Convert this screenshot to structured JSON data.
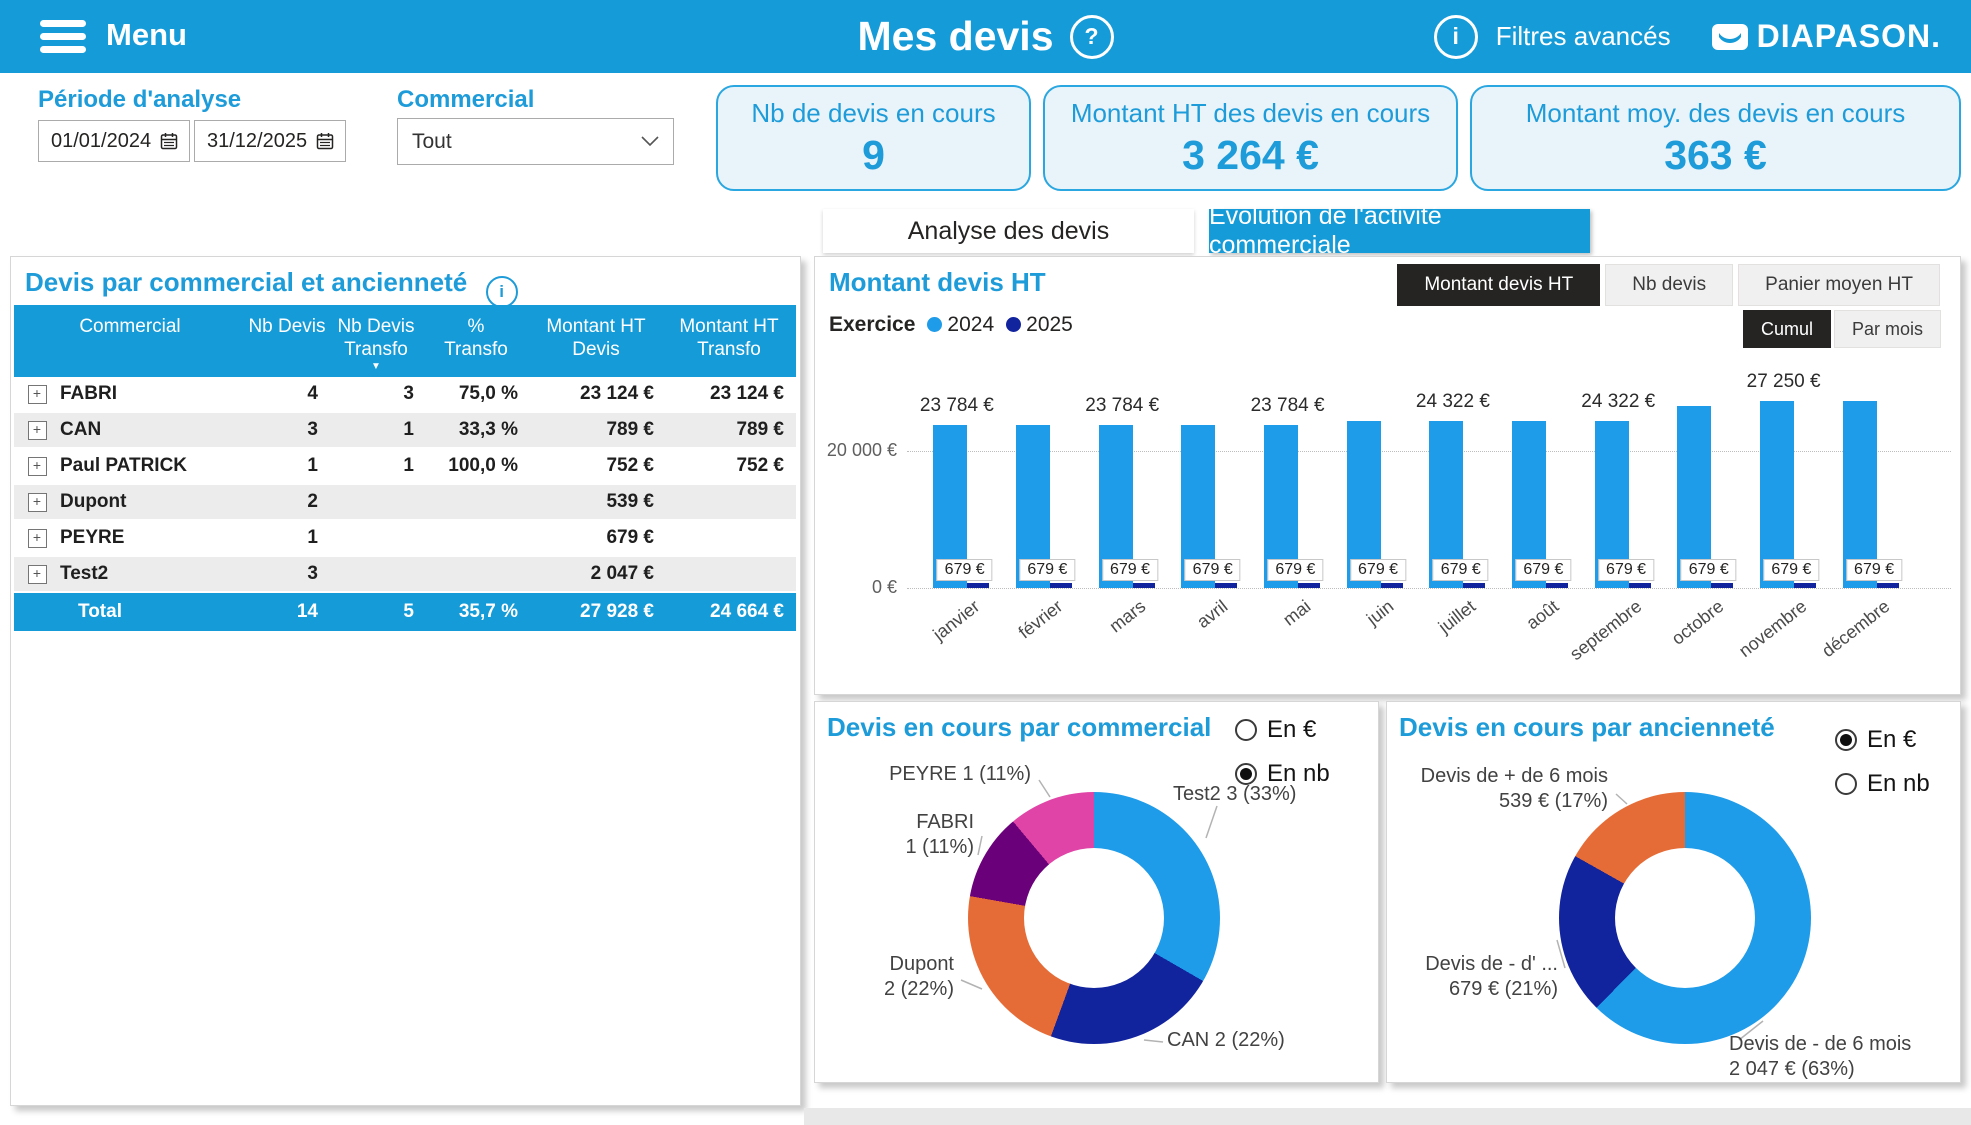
{
  "header": {
    "menu": "Menu",
    "title": "Mes devis",
    "advanced_filters": "Filtres avancés",
    "brand": "DIAPASON."
  },
  "filters": {
    "period_label": "Période d'analyse",
    "date_from": "01/01/2024",
    "date_to": "31/12/2025",
    "commercial_label": "Commercial",
    "commercial_value": "Tout"
  },
  "kpis": [
    {
      "label": "Nb de devis en cours",
      "value": "9"
    },
    {
      "label": "Montant HT des devis en cours",
      "value": "3 264 €"
    },
    {
      "label": "Montant moy. des devis en cours",
      "value": "363 €"
    }
  ],
  "tabs": [
    {
      "label": "Analyse des devis",
      "active": false
    },
    {
      "label": "Evolution de l'activité commerciale",
      "active": true
    }
  ],
  "table": {
    "title": "Devis par commercial et ancienneté",
    "columns": [
      {
        "lines": [
          "Commercial"
        ]
      },
      {
        "lines": [
          "Nb Devis"
        ]
      },
      {
        "lines": [
          "Nb Devis",
          "Transfo"
        ],
        "sorted": true
      },
      {
        "lines": [
          "%",
          "Transfo"
        ]
      },
      {
        "lines": [
          "Montant HT",
          "Devis"
        ]
      },
      {
        "lines": [
          "Montant HT",
          "Transfo"
        ]
      }
    ],
    "rows": [
      {
        "name": "FABRI",
        "nb_devis": "4",
        "nb_transfo": "3",
        "pct_transfo": "75,0 %",
        "montant_devis": "23 124 €",
        "montant_transfo": "23 124 €"
      },
      {
        "name": "CAN",
        "nb_devis": "3",
        "nb_transfo": "1",
        "pct_transfo": "33,3 %",
        "montant_devis": "789 €",
        "montant_transfo": "789 €"
      },
      {
        "name": "Paul PATRICK",
        "nb_devis": "1",
        "nb_transfo": "1",
        "pct_transfo": "100,0 %",
        "montant_devis": "752 €",
        "montant_transfo": "752 €"
      },
      {
        "name": "Dupont",
        "nb_devis": "2",
        "nb_transfo": "",
        "pct_transfo": "",
        "montant_devis": "539 €",
        "montant_transfo": ""
      },
      {
        "name": "PEYRE",
        "nb_devis": "1",
        "nb_transfo": "",
        "pct_transfo": "",
        "montant_devis": "679 €",
        "montant_transfo": ""
      },
      {
        "name": "Test2",
        "nb_devis": "3",
        "nb_transfo": "",
        "pct_transfo": "",
        "montant_devis": "2 047 €",
        "montant_transfo": ""
      }
    ],
    "total": {
      "name": "Total",
      "nb_devis": "14",
      "nb_transfo": "5",
      "pct_transfo": "35,7 %",
      "montant_devis": "27 928 €",
      "montant_transfo": "24 664 €"
    }
  },
  "bar_panel": {
    "metric_buttons": [
      {
        "label": "Montant devis HT",
        "active": true
      },
      {
        "label": "Nb devis",
        "active": false
      },
      {
        "label": "Panier moyen HT",
        "active": false
      }
    ],
    "mode_buttons": [
      {
        "label": "Cumul",
        "active": true
      },
      {
        "label": "Par mois",
        "active": false
      }
    ],
    "legend_label": "Exercice"
  },
  "donut_commercial_radios": [
    {
      "label": "En €",
      "checked": false
    },
    {
      "label": "En nb",
      "checked": true
    }
  ],
  "donut_anciennete_radios": [
    {
      "label": "En €",
      "checked": true
    },
    {
      "label": "En nb",
      "checked": false
    }
  ],
  "chart_data": [
    {
      "type": "bar",
      "title": "Montant devis HT",
      "mode": "Cumul",
      "categories": [
        "janvier",
        "février",
        "mars",
        "avril",
        "mai",
        "juin",
        "juillet",
        "août",
        "septembre",
        "octobre",
        "novembre",
        "décembre"
      ],
      "series": [
        {
          "name": "2024",
          "color": "#1E9BE9",
          "values": [
            23784,
            23784,
            23784,
            23784,
            23784,
            24322,
            24322,
            24322,
            24322,
            26500,
            27250,
            27250
          ],
          "data_labels": [
            "23 784 €",
            null,
            "23 784 €",
            null,
            "23 784 €",
            null,
            "24 322 €",
            null,
            "24 322 €",
            null,
            "27 250 €",
            null
          ]
        },
        {
          "name": "2025",
          "color": "#12239E",
          "values": [
            679,
            679,
            679,
            679,
            679,
            679,
            679,
            679,
            679,
            679,
            679,
            679
          ],
          "data_labels": [
            "679 €",
            "679 €",
            "679 €",
            "679 €",
            "679 €",
            "679 €",
            "679 €",
            "679 €",
            "679 €",
            "679 €",
            "679 €",
            "679 €"
          ]
        }
      ],
      "y_ticks": [
        {
          "value": 20000,
          "label": "20 000 €"
        },
        {
          "value": 0,
          "label": "0 €"
        }
      ],
      "ylim": [
        0,
        28000
      ],
      "legend_position": "top-left"
    },
    {
      "type": "pie",
      "title": "Devis en cours par commercial",
      "unit": "nb",
      "slices": [
        {
          "label": "Test2",
          "value": 3,
          "pct": 33,
          "color": "#1E9BE9",
          "callout": "Test2 3 (33%)"
        },
        {
          "label": "CAN",
          "value": 2,
          "pct": 22,
          "color": "#12239E",
          "callout": "CAN 2 (22%)"
        },
        {
          "label": "Dupont",
          "value": 2,
          "pct": 22,
          "color": "#E66C37",
          "callout": "Dupont\n2 (22%)"
        },
        {
          "label": "FABRI",
          "value": 1,
          "pct": 11,
          "color": "#6B007B",
          "callout": "FABRI\n1 (11%)"
        },
        {
          "label": "PEYRE",
          "value": 1,
          "pct": 11,
          "color": "#E044A7",
          "callout": "PEYRE 1 (11%)"
        }
      ]
    },
    {
      "type": "pie",
      "title": "Devis en cours par ancienneté",
      "unit": "€",
      "slices": [
        {
          "label": "Devis de - de 6 mois",
          "value": "2 047 €",
          "pct": 63,
          "color": "#1E9BE9",
          "callout": "Devis de - de 6 mois\n2 047 € (63%)"
        },
        {
          "label": "Devis de - d' ...",
          "value": "679 €",
          "pct": 21,
          "color": "#12239E",
          "callout": "Devis de - d' ...\n679 € (21%)"
        },
        {
          "label": "Devis de + de 6 mois",
          "value": "539 €",
          "pct": 17,
          "color": "#E66C37",
          "callout": "Devis de + de 6 mois\n539 € (17%)"
        }
      ]
    }
  ],
  "colors": {
    "accent": "#159BD8",
    "title_blue": "#1E9CD9",
    "dark_button": "#252423"
  }
}
